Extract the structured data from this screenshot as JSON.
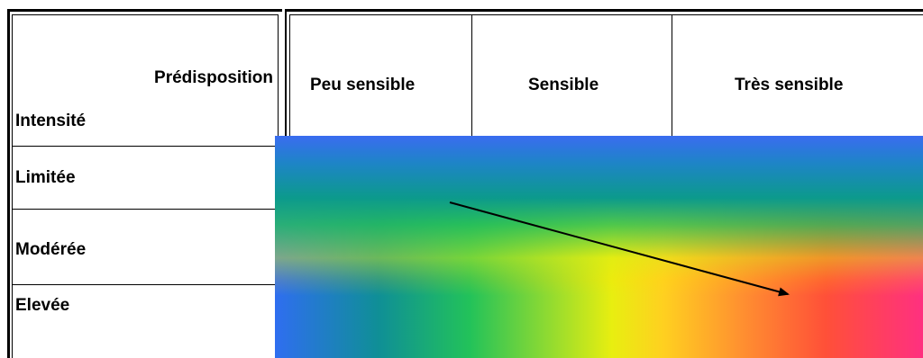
{
  "header": {
    "corner_top": "Prédisposition",
    "corner_bottom": "Intensité",
    "columns": [
      "Peu sensible",
      "Sensible",
      "Très sensible"
    ]
  },
  "rows": [
    "Limitée",
    "Modérée",
    "Elevée"
  ],
  "colors": {
    "gradient_start": "#2f6ef0",
    "gradient_mid": "#e8ee10",
    "gradient_end": "#ff3080",
    "arrow": "#000000"
  }
}
